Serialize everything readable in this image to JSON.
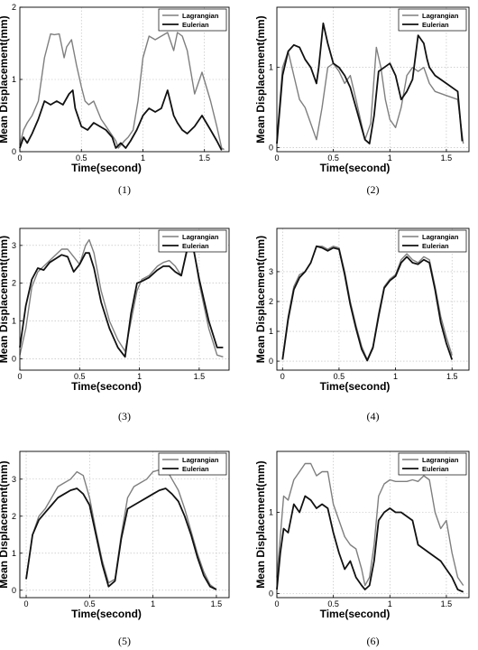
{
  "colors": {
    "lagrangian": "#7f7f7f",
    "eulerian": "#111111"
  },
  "chart_data": [
    {
      "type": "line",
      "caption": "(1)",
      "xlabel": "Time(second)",
      "ylabel": "Mean Displacement(mm)",
      "xlim": [
        0,
        1.7
      ],
      "ylim": [
        0,
        2
      ],
      "xticks": [
        "0",
        "0.5",
        "1",
        "1.5"
      ],
      "yticks": [
        "0",
        "1",
        "2"
      ],
      "ytick_values": [
        0,
        1,
        2
      ],
      "grid": true,
      "legend": "top-right",
      "series": [
        {
          "name": "Lagrangian",
          "x": [
            0,
            0.03,
            0.06,
            0.1,
            0.15,
            0.2,
            0.25,
            0.28,
            0.32,
            0.36,
            0.38,
            0.42,
            0.46,
            0.5,
            0.53,
            0.56,
            0.6,
            0.66,
            0.72,
            0.78,
            0.8,
            0.85,
            0.88,
            0.92,
            0.96,
            1.0,
            1.05,
            1.1,
            1.15,
            1.2,
            1.25,
            1.28,
            1.32,
            1.36,
            1.42,
            1.48,
            1.55,
            1.6,
            1.64,
            1.66
          ],
          "y": [
            0.1,
            0.3,
            0.4,
            0.5,
            0.7,
            1.3,
            1.63,
            1.62,
            1.63,
            1.3,
            1.45,
            1.55,
            1.2,
            0.9,
            0.7,
            0.65,
            0.7,
            0.45,
            0.3,
            0.15,
            0.05,
            0.15,
            0.2,
            0.3,
            0.7,
            1.3,
            1.6,
            1.55,
            1.6,
            1.65,
            1.4,
            1.65,
            1.6,
            1.4,
            0.8,
            1.1,
            0.7,
            0.35,
            0.05,
            0.03
          ]
        },
        {
          "name": "Eulerian",
          "x": [
            0,
            0.03,
            0.06,
            0.1,
            0.15,
            0.2,
            0.25,
            0.3,
            0.35,
            0.4,
            0.43,
            0.45,
            0.5,
            0.55,
            0.6,
            0.65,
            0.7,
            0.75,
            0.78,
            0.82,
            0.86,
            0.9,
            0.95,
            1.0,
            1.05,
            1.1,
            1.15,
            1.2,
            1.25,
            1.28,
            1.32,
            1.36,
            1.42,
            1.48,
            1.55,
            1.6,
            1.64
          ],
          "y": [
            0.05,
            0.2,
            0.12,
            0.25,
            0.45,
            0.7,
            0.65,
            0.7,
            0.65,
            0.8,
            0.85,
            0.6,
            0.35,
            0.3,
            0.4,
            0.35,
            0.3,
            0.2,
            0.05,
            0.12,
            0.05,
            0.15,
            0.3,
            0.5,
            0.6,
            0.55,
            0.6,
            0.85,
            0.5,
            0.4,
            0.3,
            0.25,
            0.35,
            0.5,
            0.3,
            0.15,
            0.02
          ]
        }
      ]
    },
    {
      "type": "line",
      "caption": "(2)",
      "xlabel": "Time(second)",
      "ylabel": "Mean Displacement(mm)",
      "xlim": [
        0,
        1.7
      ],
      "ylim": [
        -0.05,
        1.75
      ],
      "xticks": [
        "0",
        "0.5",
        "1",
        "1.5"
      ],
      "yticks": [
        "0",
        "1"
      ],
      "ytick_values": [
        0,
        1
      ],
      "grid": true,
      "legend": "top-right",
      "series": [
        {
          "name": "Lagrangian",
          "x": [
            0,
            0.05,
            0.1,
            0.15,
            0.2,
            0.25,
            0.3,
            0.35,
            0.4,
            0.45,
            0.5,
            0.55,
            0.6,
            0.65,
            0.7,
            0.78,
            0.83,
            0.88,
            0.92,
            0.96,
            1.0,
            1.05,
            1.1,
            1.15,
            1.2,
            1.25,
            1.3,
            1.35,
            1.4,
            1.5,
            1.6,
            1.65
          ],
          "y": [
            0.1,
            1.0,
            1.2,
            0.9,
            0.6,
            0.5,
            0.3,
            0.1,
            0.5,
            1.0,
            1.05,
            0.95,
            0.8,
            0.9,
            0.6,
            0.1,
            0.3,
            1.25,
            1.0,
            0.6,
            0.35,
            0.25,
            0.5,
            0.9,
            1.0,
            0.95,
            1.0,
            0.8,
            0.7,
            0.65,
            0.6,
            0.05
          ]
        },
        {
          "name": "Eulerian",
          "x": [
            0,
            0.05,
            0.1,
            0.15,
            0.2,
            0.25,
            0.3,
            0.35,
            0.37,
            0.41,
            0.45,
            0.5,
            0.55,
            0.6,
            0.65,
            0.7,
            0.78,
            0.82,
            0.86,
            0.9,
            0.95,
            1.0,
            1.05,
            1.1,
            1.15,
            1.2,
            1.25,
            1.3,
            1.33,
            1.35,
            1.4,
            1.5,
            1.6,
            1.64
          ],
          "y": [
            0.05,
            0.9,
            1.2,
            1.28,
            1.25,
            1.1,
            1.0,
            0.8,
            1.0,
            1.55,
            1.3,
            1.05,
            1.0,
            0.9,
            0.75,
            0.5,
            0.1,
            0.05,
            0.4,
            0.95,
            1.0,
            1.05,
            0.9,
            0.6,
            0.7,
            0.85,
            1.4,
            1.3,
            1.1,
            1.0,
            0.9,
            0.8,
            0.7,
            0.08
          ]
        }
      ]
    },
    {
      "type": "line",
      "caption": "(3)",
      "xlabel": "Time(second)",
      "ylabel": "Mean Displacement(mm)",
      "xlim": [
        0,
        1.75
      ],
      "ylim": [
        -0.3,
        3.45
      ],
      "xticks": [
        "0",
        "0.5",
        "1",
        "1.5"
      ],
      "yticks": [
        "0",
        "1",
        "2",
        "3"
      ],
      "ytick_values": [
        0,
        1,
        2,
        3
      ],
      "grid": true,
      "legend": "top-right",
      "series": [
        {
          "name": "Lagrangian",
          "x": [
            0,
            0.05,
            0.1,
            0.15,
            0.2,
            0.25,
            0.3,
            0.35,
            0.4,
            0.45,
            0.5,
            0.55,
            0.58,
            0.62,
            0.68,
            0.75,
            0.82,
            0.88,
            0.93,
            0.98,
            1.02,
            1.08,
            1.15,
            1.2,
            1.25,
            1.3,
            1.35,
            1.4,
            1.45,
            1.5,
            1.58,
            1.65,
            1.7
          ],
          "y": [
            0.1,
            0.8,
            1.9,
            2.3,
            2.45,
            2.6,
            2.75,
            2.9,
            2.9,
            2.7,
            2.5,
            3.0,
            3.15,
            2.8,
            1.8,
            1.0,
            0.5,
            0.2,
            1.0,
            1.8,
            2.1,
            2.2,
            2.45,
            2.55,
            2.6,
            2.45,
            2.2,
            2.95,
            3.0,
            2.0,
            0.8,
            0.1,
            0.05
          ]
        },
        {
          "name": "Eulerian",
          "x": [
            0,
            0.05,
            0.1,
            0.15,
            0.2,
            0.25,
            0.3,
            0.35,
            0.4,
            0.45,
            0.5,
            0.55,
            0.58,
            0.62,
            0.68,
            0.75,
            0.82,
            0.88,
            0.93,
            0.98,
            1.02,
            1.08,
            1.15,
            1.2,
            1.25,
            1.3,
            1.35,
            1.4,
            1.45,
            1.5,
            1.58,
            1.65,
            1.7
          ],
          "y": [
            0.3,
            1.4,
            2.1,
            2.4,
            2.35,
            2.55,
            2.65,
            2.75,
            2.7,
            2.3,
            2.5,
            2.8,
            2.8,
            2.4,
            1.5,
            0.8,
            0.3,
            0.05,
            1.2,
            2.0,
            2.05,
            2.15,
            2.35,
            2.45,
            2.45,
            2.3,
            2.2,
            2.9,
            2.95,
            2.1,
            1.0,
            0.3,
            0.3
          ]
        }
      ]
    },
    {
      "type": "line",
      "caption": "(4)",
      "xlabel": "Time(second)",
      "ylabel": "Mean Displacement(mm)",
      "xlim": [
        -0.05,
        1.65
      ],
      "ylim": [
        -0.3,
        4.45
      ],
      "xticks": [
        "0",
        "0.5",
        "1",
        "1.5"
      ],
      "yticks": [
        "0",
        "1",
        "2",
        "3"
      ],
      "ytick_values": [
        0,
        1,
        2,
        3
      ],
      "grid": true,
      "legend": "top-right",
      "series": [
        {
          "name": "Lagrangian",
          "x": [
            0,
            0.05,
            0.1,
            0.15,
            0.2,
            0.25,
            0.3,
            0.35,
            0.4,
            0.45,
            0.5,
            0.55,
            0.6,
            0.65,
            0.7,
            0.75,
            0.8,
            0.85,
            0.9,
            0.95,
            1.0,
            1.05,
            1.1,
            1.15,
            1.2,
            1.25,
            1.3,
            1.35,
            1.4,
            1.45,
            1.5
          ],
          "y": [
            0.1,
            1.5,
            2.5,
            2.9,
            3.0,
            3.3,
            3.85,
            3.85,
            3.75,
            3.85,
            3.8,
            3.0,
            2.0,
            1.2,
            0.5,
            0.05,
            0.5,
            1.6,
            2.5,
            2.75,
            2.9,
            3.4,
            3.6,
            3.4,
            3.3,
            3.5,
            3.4,
            2.5,
            1.5,
            0.8,
            0.2
          ]
        },
        {
          "name": "Eulerian",
          "x": [
            0,
            0.05,
            0.1,
            0.15,
            0.2,
            0.25,
            0.3,
            0.35,
            0.4,
            0.45,
            0.5,
            0.55,
            0.6,
            0.65,
            0.7,
            0.75,
            0.8,
            0.85,
            0.9,
            0.95,
            1.0,
            1.05,
            1.1,
            1.15,
            1.2,
            1.25,
            1.3,
            1.35,
            1.4,
            1.45,
            1.5
          ],
          "y": [
            0.05,
            1.4,
            2.4,
            2.8,
            3.0,
            3.3,
            3.85,
            3.8,
            3.7,
            3.8,
            3.75,
            2.9,
            1.9,
            1.1,
            0.4,
            0.02,
            0.45,
            1.5,
            2.45,
            2.7,
            2.85,
            3.3,
            3.5,
            3.3,
            3.25,
            3.4,
            3.3,
            2.4,
            1.3,
            0.6,
            0.05
          ]
        }
      ]
    },
    {
      "type": "line",
      "caption": "(5)",
      "xlabel": "Time(second)",
      "ylabel": "Mean Displacement(mm)",
      "xlim": [
        -0.05,
        1.6
      ],
      "ylim": [
        -0.2,
        3.75
      ],
      "xticks": [
        "0",
        "0.5",
        "1",
        "1.5"
      ],
      "yticks": [
        "0",
        "1",
        "2",
        "3"
      ],
      "ytick_values": [
        0,
        1,
        2,
        3
      ],
      "grid": true,
      "legend": "top-right",
      "series": [
        {
          "name": "Lagrangian",
          "x": [
            0,
            0.05,
            0.1,
            0.15,
            0.2,
            0.25,
            0.3,
            0.35,
            0.4,
            0.45,
            0.5,
            0.55,
            0.6,
            0.65,
            0.7,
            0.75,
            0.8,
            0.85,
            0.9,
            0.95,
            1.0,
            1.05,
            1.1,
            1.15,
            1.2,
            1.25,
            1.3,
            1.35,
            1.4,
            1.45,
            1.5
          ],
          "y": [
            0.3,
            1.5,
            2.0,
            2.2,
            2.5,
            2.8,
            2.9,
            3.0,
            3.2,
            3.1,
            2.5,
            1.6,
            0.8,
            0.2,
            0.3,
            1.5,
            2.5,
            2.8,
            2.9,
            3.0,
            3.2,
            3.25,
            3.3,
            3.0,
            2.7,
            2.2,
            1.6,
            1.0,
            0.5,
            0.15,
            0.02
          ]
        },
        {
          "name": "Eulerian",
          "x": [
            0,
            0.05,
            0.1,
            0.15,
            0.2,
            0.25,
            0.3,
            0.35,
            0.4,
            0.45,
            0.5,
            0.55,
            0.6,
            0.65,
            0.7,
            0.75,
            0.8,
            0.85,
            0.9,
            0.95,
            1.0,
            1.05,
            1.1,
            1.15,
            1.2,
            1.25,
            1.3,
            1.35,
            1.4,
            1.45,
            1.5
          ],
          "y": [
            0.3,
            1.5,
            1.9,
            2.1,
            2.3,
            2.5,
            2.6,
            2.7,
            2.75,
            2.6,
            2.3,
            1.5,
            0.7,
            0.1,
            0.25,
            1.4,
            2.2,
            2.3,
            2.4,
            2.5,
            2.6,
            2.7,
            2.75,
            2.6,
            2.4,
            2.0,
            1.5,
            0.9,
            0.4,
            0.1,
            0.02
          ]
        }
      ]
    },
    {
      "type": "line",
      "caption": "(6)",
      "xlabel": "Time(second)",
      "ylabel": "Mean Displacement(mm)",
      "xlim": [
        0,
        1.7
      ],
      "ylim": [
        -0.05,
        1.75
      ],
      "xticks": [
        "0",
        "0.5",
        "1",
        "1.5"
      ],
      "yticks": [
        "0",
        "1"
      ],
      "ytick_values": [
        0,
        1
      ],
      "grid": true,
      "legend": "top-right",
      "series": [
        {
          "name": "Lagrangian",
          "x": [
            0,
            0.03,
            0.06,
            0.1,
            0.15,
            0.2,
            0.25,
            0.3,
            0.35,
            0.4,
            0.45,
            0.5,
            0.55,
            0.6,
            0.65,
            0.7,
            0.75,
            0.78,
            0.82,
            0.86,
            0.9,
            0.95,
            1.0,
            1.05,
            1.1,
            1.15,
            1.2,
            1.25,
            1.3,
            1.35,
            1.4,
            1.45,
            1.5,
            1.55,
            1.6,
            1.65
          ],
          "y": [
            0.2,
            0.7,
            1.2,
            1.15,
            1.4,
            1.5,
            1.6,
            1.6,
            1.45,
            1.5,
            1.5,
            1.1,
            0.9,
            0.7,
            0.6,
            0.55,
            0.3,
            0.1,
            0.2,
            0.6,
            1.2,
            1.35,
            1.4,
            1.38,
            1.38,
            1.38,
            1.4,
            1.38,
            1.45,
            1.4,
            1.0,
            0.8,
            0.9,
            0.5,
            0.2,
            0.1
          ]
        },
        {
          "name": "Eulerian",
          "x": [
            0,
            0.03,
            0.06,
            0.1,
            0.15,
            0.2,
            0.25,
            0.3,
            0.35,
            0.4,
            0.45,
            0.5,
            0.55,
            0.6,
            0.65,
            0.7,
            0.75,
            0.78,
            0.82,
            0.86,
            0.9,
            0.95,
            1.0,
            1.05,
            1.1,
            1.15,
            1.2,
            1.25,
            1.3,
            1.35,
            1.4,
            1.45,
            1.5,
            1.55,
            1.6,
            1.65
          ],
          "y": [
            0.05,
            0.5,
            0.8,
            0.75,
            1.1,
            1.0,
            1.2,
            1.15,
            1.05,
            1.1,
            1.05,
            0.75,
            0.5,
            0.3,
            0.4,
            0.2,
            0.1,
            0.05,
            0.1,
            0.4,
            0.9,
            1.0,
            1.05,
            1.0,
            1.0,
            0.95,
            0.9,
            0.6,
            0.55,
            0.5,
            0.45,
            0.4,
            0.3,
            0.2,
            0.05,
            0.02
          ]
        }
      ]
    }
  ]
}
